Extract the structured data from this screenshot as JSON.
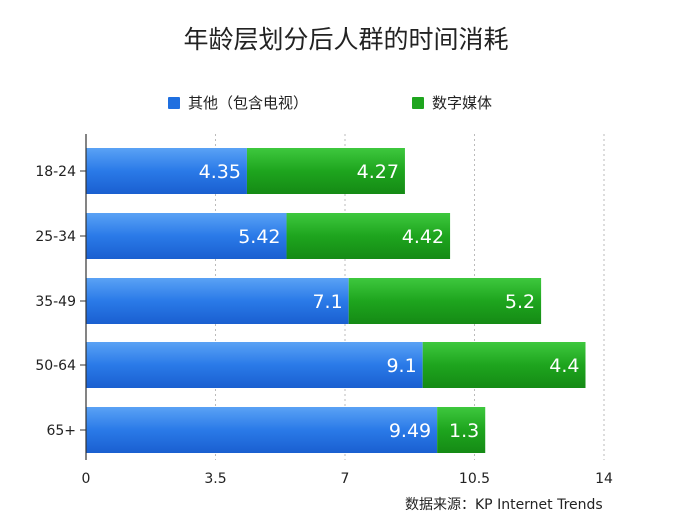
{
  "title": "年龄层划分后人群的时间消耗",
  "source": "数据来源：KP Internet Trends",
  "colors": {
    "series1": "#1f6fe0",
    "series2": "#1ea51e",
    "axis": "#333333",
    "grid": "#bbbbbb"
  },
  "chart_data": {
    "type": "bar",
    "orientation": "horizontal",
    "stacked": true,
    "categories": [
      "18-24",
      "25-34",
      "35-49",
      "50-64",
      "65+"
    ],
    "series": [
      {
        "name": "其他（包含电视）",
        "values": [
          4.35,
          5.42,
          7.1,
          9.1,
          9.49
        ]
      },
      {
        "name": "数字媒体",
        "values": [
          4.27,
          4.42,
          5.2,
          4.4,
          1.3
        ]
      }
    ],
    "xlim": [
      0,
      14
    ],
    "xticks": [
      "0",
      "3.5",
      "7",
      "10.5",
      "14"
    ],
    "data_labels": [
      [
        "4.35",
        "5.42",
        "7.1",
        "9.1",
        "9.49"
      ],
      [
        "4.27",
        "4.42",
        "5.2",
        "4.4",
        "1.3"
      ]
    ],
    "grid": "vertical dotted",
    "legend": "top"
  }
}
